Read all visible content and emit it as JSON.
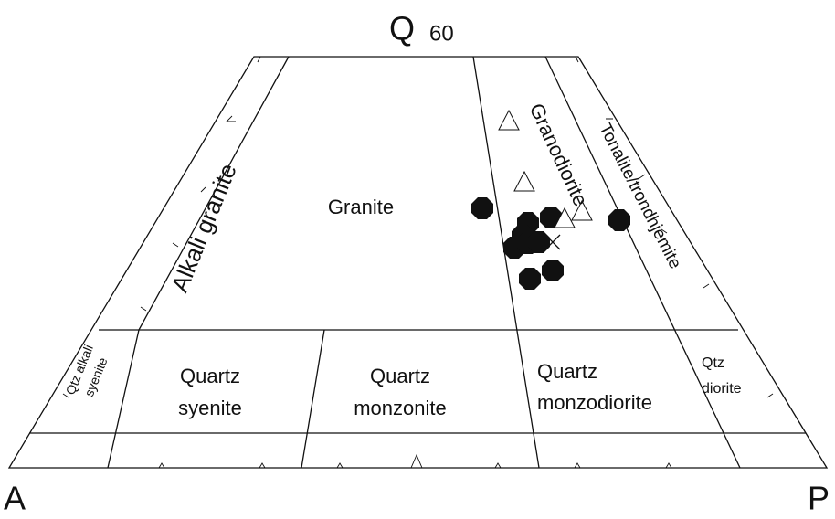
{
  "apex_top": {
    "letter": "Q",
    "value": "60"
  },
  "apex_left": "A",
  "apex_right": "P",
  "fields": {
    "alkali_granite": "Alkali granite",
    "granite": "Granite",
    "granodiorite": "Granodiorite",
    "tonalite": "Tonalite/trondhjemite",
    "qtz_alkali_syenite": [
      "Qtz alkali",
      "syenite"
    ],
    "quartz_syenite": [
      "Quartz",
      "syenite"
    ],
    "quartz_monzonite": [
      "Quartz",
      "monzonite"
    ],
    "quartz_monzodiorite": [
      "Quartz",
      "monzodiorite"
    ],
    "qtz_diorite": [
      "Qtz",
      "diorite"
    ]
  }
}
